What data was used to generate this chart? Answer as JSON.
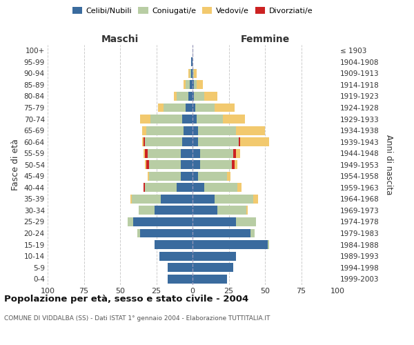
{
  "age_groups": [
    "0-4",
    "5-9",
    "10-14",
    "15-19",
    "20-24",
    "25-29",
    "30-34",
    "35-39",
    "40-44",
    "45-49",
    "50-54",
    "55-59",
    "60-64",
    "65-69",
    "70-74",
    "75-79",
    "80-84",
    "85-89",
    "90-94",
    "95-99",
    "100+"
  ],
  "birth_years": [
    "1999-2003",
    "1994-1998",
    "1989-1993",
    "1984-1988",
    "1979-1983",
    "1974-1978",
    "1969-1973",
    "1964-1968",
    "1959-1963",
    "1954-1958",
    "1949-1953",
    "1944-1948",
    "1939-1943",
    "1934-1938",
    "1929-1933",
    "1924-1928",
    "1919-1923",
    "1914-1918",
    "1909-1913",
    "1904-1908",
    "≤ 1903"
  ],
  "maschi": {
    "celibi": [
      17,
      17,
      23,
      26,
      36,
      41,
      26,
      22,
      11,
      8,
      8,
      8,
      7,
      6,
      7,
      5,
      3,
      2,
      1,
      1,
      0
    ],
    "coniugati": [
      0,
      0,
      0,
      0,
      2,
      4,
      11,
      20,
      22,
      22,
      22,
      23,
      26,
      26,
      22,
      15,
      8,
      3,
      1,
      0,
      0
    ],
    "vedovi": [
      0,
      0,
      0,
      0,
      0,
      0,
      0,
      1,
      0,
      1,
      1,
      1,
      1,
      3,
      7,
      4,
      2,
      1,
      1,
      0,
      0
    ],
    "divorziati": [
      0,
      0,
      0,
      0,
      0,
      0,
      0,
      0,
      1,
      0,
      2,
      2,
      1,
      0,
      0,
      0,
      0,
      0,
      0,
      0,
      0
    ]
  },
  "femmine": {
    "nubili": [
      24,
      28,
      30,
      52,
      40,
      30,
      17,
      15,
      8,
      4,
      5,
      5,
      4,
      4,
      3,
      2,
      1,
      1,
      0,
      0,
      0
    ],
    "coniugate": [
      0,
      0,
      0,
      1,
      3,
      14,
      20,
      27,
      23,
      20,
      22,
      23,
      28,
      26,
      18,
      13,
      7,
      2,
      1,
      0,
      0
    ],
    "vedove": [
      0,
      0,
      0,
      0,
      0,
      0,
      1,
      3,
      3,
      2,
      2,
      3,
      20,
      20,
      15,
      14,
      9,
      4,
      2,
      0,
      0
    ],
    "divorziate": [
      0,
      0,
      0,
      0,
      0,
      0,
      0,
      0,
      0,
      0,
      2,
      2,
      1,
      0,
      0,
      0,
      0,
      0,
      0,
      0,
      0
    ]
  },
  "colors": {
    "celibi_nubili": "#3a6b9e",
    "coniugati": "#b8cda4",
    "vedovi": "#f2c96e",
    "divorziati": "#cc2222"
  },
  "title": "Popolazione per età, sesso e stato civile - 2004",
  "subtitle": "COMUNE DI VIDDALBA (SS) - Dati ISTAT 1° gennaio 2004 - Elaborazione TUTTITALIA.IT",
  "ylabel_left": "Fasce di età",
  "ylabel_right": "Anni di nascita",
  "xlabel_maschi": "Maschi",
  "xlabel_femmine": "Femmine",
  "xlim": 100,
  "background_color": "#ffffff",
  "grid_color": "#cccccc"
}
